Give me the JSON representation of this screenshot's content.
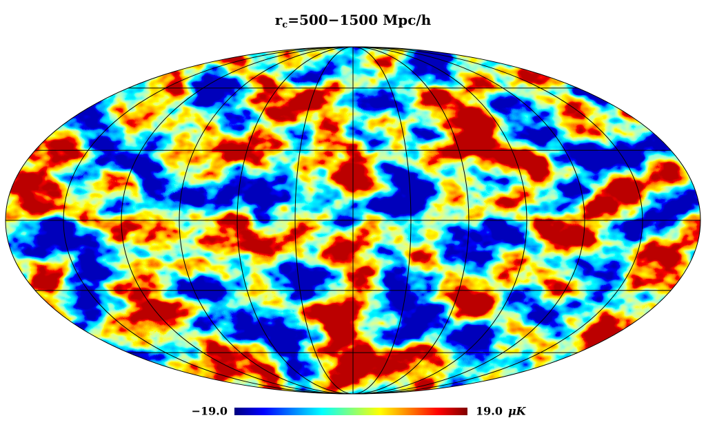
{
  "chart_data": {
    "type": "mollweide",
    "title": {
      "main": "r",
      "subscript": "c",
      "rest": "=500−1500 Mpc/h"
    },
    "colorbar": {
      "ticks": [
        {
          "value": -19,
          "label": "−19.0"
        },
        {
          "value": 19,
          "label": "19.0"
        }
      ],
      "unit": "μK",
      "colormap": "jet"
    },
    "graticule": true,
    "graticule_spacing_deg": 30
  }
}
